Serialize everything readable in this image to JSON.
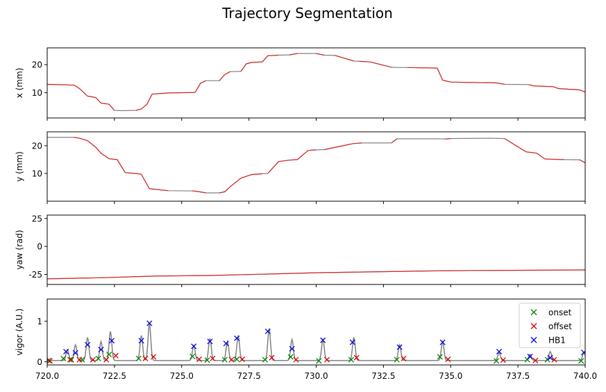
{
  "title": "Trajectory Segmentation",
  "chart_data": [
    {
      "type": "line",
      "ylabel": "x (mm)",
      "xlim": [
        720,
        740
      ],
      "ylim": [
        1,
        26
      ],
      "yticks": [
        10,
        20
      ],
      "show_xticklabels": false,
      "line_color": "#808080",
      "segment_color": "#d62728",
      "series": [
        {
          "x": [
            720,
            721.0,
            721.2,
            721.5,
            721.8,
            722.0,
            722.3,
            722.5,
            722.8,
            723.3,
            723.5,
            723.7,
            723.9,
            724.5,
            725.5,
            725.7,
            725.9,
            726.4,
            726.6,
            726.8,
            727.2,
            727.4,
            727.6,
            728.0,
            728.2,
            728.6,
            729.0,
            729.3,
            730.0,
            730.3,
            730.7,
            731.4,
            731.6,
            732.0,
            732.8,
            733.0,
            733.4,
            734.5,
            734.7,
            735.0,
            736.7,
            737.0,
            737.9,
            738.1,
            738.8,
            739.0,
            739.8,
            740.0
          ],
          "y": [
            13,
            12.7,
            11.5,
            8.8,
            8.3,
            6.3,
            5.9,
            3.7,
            3.6,
            3.7,
            4.2,
            5.8,
            9.5,
            9.9,
            10.1,
            13.4,
            14.3,
            14.3,
            16.5,
            17.5,
            17.6,
            20.3,
            20.8,
            21.0,
            23.2,
            23.4,
            23.5,
            24.0,
            24.0,
            23.4,
            23.3,
            21.3,
            21.2,
            21.0,
            19.1,
            19.0,
            19.0,
            18.8,
            14.5,
            13.8,
            13.5,
            13.0,
            12.9,
            12.4,
            12.2,
            11.5,
            11.0,
            10.2
          ]
        }
      ]
    },
    {
      "type": "line",
      "ylabel": "y (mm)",
      "xlim": [
        720,
        740
      ],
      "ylim": [
        0,
        25
      ],
      "yticks": [
        10,
        20
      ],
      "show_xticklabels": false,
      "line_color": "#808080",
      "segment_color": "#d62728",
      "series": [
        {
          "x": [
            720,
            721.0,
            721.2,
            721.5,
            721.8,
            722.0,
            722.3,
            722.6,
            722.9,
            723.3,
            723.5,
            723.8,
            724.5,
            725.4,
            725.6,
            725.9,
            726.4,
            726.6,
            726.8,
            727.2,
            727.6,
            728.0,
            728.2,
            728.6,
            729.0,
            729.3,
            729.7,
            730.0,
            730.3,
            731.2,
            731.4,
            731.7,
            732.8,
            733.0,
            733.4,
            734.5,
            734.8,
            735.0,
            736.5,
            737.0,
            737.8,
            738.2,
            738.5,
            739.2,
            739.8,
            740.0
          ],
          "y": [
            23.0,
            23.0,
            22.7,
            21.8,
            19.5,
            17.3,
            15.3,
            15.0,
            10.3,
            10.0,
            9.7,
            4.5,
            3.8,
            3.7,
            3.5,
            3.0,
            3.0,
            3.4,
            5.2,
            8.3,
            9.6,
            9.9,
            10.0,
            14.3,
            14.8,
            15.0,
            18.3,
            18.5,
            18.6,
            20.4,
            20.8,
            21.0,
            21.0,
            22.5,
            22.5,
            22.5,
            22.4,
            22.6,
            22.7,
            22.6,
            17.8,
            17.3,
            15.2,
            15.0,
            14.9,
            13.8
          ]
        }
      ]
    },
    {
      "type": "line",
      "ylabel": "yaw (rad)",
      "xlim": [
        720,
        740
      ],
      "ylim": [
        -34,
        28
      ],
      "yticks": [
        -25,
        0,
        25
      ],
      "show_xticklabels": false,
      "line_color": "#808080",
      "segment_color": "#d62728",
      "series": [
        {
          "x": [
            720,
            722.0,
            724.0,
            726.0,
            728.0,
            730.0,
            732.0,
            734.0,
            736.0,
            738.0,
            740.0
          ],
          "y": [
            -29.0,
            -28.0,
            -26.5,
            -26.0,
            -24.8,
            -23.5,
            -22.8,
            -22.0,
            -21.5,
            -21.3,
            -21.0
          ]
        }
      ]
    },
    {
      "type": "line",
      "ylabel": "vigor (A.U.)",
      "xlim": [
        720,
        740
      ],
      "ylim": [
        -0.08,
        1.55
      ],
      "yticks": [
        0,
        1
      ],
      "xticks": [
        720.0,
        722.5,
        725.0,
        727.5,
        730.0,
        732.5,
        735.0,
        737.5,
        740.0
      ],
      "xticklabels": [
        "720.0",
        "722.5",
        "725.0",
        "727.5",
        "730.0",
        "732.5",
        "735.0",
        "737.5",
        "740.0"
      ],
      "show_xticklabels": true,
      "line_color": "#808080",
      "legend_position": "top-right",
      "baseline": 0.03,
      "peaks": [
        {
          "x": 720.75,
          "y": 0.3
        },
        {
          "x": 721.05,
          "y": 0.42
        },
        {
          "x": 721.5,
          "y": 0.6
        },
        {
          "x": 722.0,
          "y": 0.5
        },
        {
          "x": 722.35,
          "y": 0.75
        },
        {
          "x": 723.5,
          "y": 0.65
        },
        {
          "x": 723.8,
          "y": 0.95
        },
        {
          "x": 725.45,
          "y": 0.4
        },
        {
          "x": 726.05,
          "y": 0.58
        },
        {
          "x": 726.7,
          "y": 0.5
        },
        {
          "x": 727.1,
          "y": 0.65
        },
        {
          "x": 728.25,
          "y": 0.82
        },
        {
          "x": 729.1,
          "y": 0.55
        },
        {
          "x": 730.25,
          "y": 0.55
        },
        {
          "x": 731.4,
          "y": 0.6
        },
        {
          "x": 733.1,
          "y": 0.42
        },
        {
          "x": 734.7,
          "y": 0.5
        },
        {
          "x": 736.8,
          "y": 0.22
        },
        {
          "x": 737.95,
          "y": 0.18
        },
        {
          "x": 738.7,
          "y": 0.25
        },
        {
          "x": 739.95,
          "y": 0.22
        }
      ],
      "markers": [
        {
          "name": "onset",
          "color": "#008000",
          "x": [
            720.05,
            720.6,
            720.9,
            721.3,
            721.9,
            722.3,
            723.4,
            725.4,
            725.95,
            726.6,
            727.05,
            728.1,
            729.05,
            730.1,
            731.3,
            733.0,
            734.6,
            736.7,
            737.85,
            738.6,
            739.85
          ],
          "y": [
            0.03,
            0.08,
            0.05,
            0.05,
            0.08,
            0.18,
            0.08,
            0.13,
            0.04,
            0.05,
            0.06,
            0.05,
            0.12,
            0.02,
            0.05,
            0.05,
            0.12,
            0.02,
            0.05,
            0.05,
            0.02
          ]
        },
        {
          "name": "offset",
          "color": "#d40000",
          "x": [
            720.1,
            720.85,
            721.2,
            721.7,
            722.2,
            722.55,
            723.65,
            723.95,
            725.65,
            726.15,
            726.85,
            727.25,
            728.35,
            729.25,
            730.4,
            731.5,
            733.25,
            734.9,
            736.95,
            738.15,
            738.85
          ],
          "y": [
            0.02,
            0.05,
            0.05,
            0.05,
            0.05,
            0.15,
            0.08,
            0.12,
            0.06,
            0.08,
            0.05,
            0.06,
            0.1,
            0.05,
            0.05,
            0.1,
            0.08,
            0.06,
            0.04,
            0.03,
            0.05
          ]
        },
        {
          "name": "HB1",
          "color": "#0000e6",
          "x": [
            720.7,
            721.05,
            721.5,
            722.0,
            722.4,
            723.5,
            723.8,
            725.45,
            726.05,
            726.65,
            727.05,
            728.2,
            729.1,
            730.25,
            731.35,
            733.1,
            734.7,
            736.8,
            737.95,
            738.7,
            739.95
          ],
          "y": [
            0.25,
            0.22,
            0.42,
            0.3,
            0.52,
            0.52,
            0.95,
            0.38,
            0.5,
            0.45,
            0.58,
            0.75,
            0.32,
            0.53,
            0.48,
            0.36,
            0.48,
            0.25,
            0.13,
            0.1,
            0.23
          ]
        }
      ]
    }
  ]
}
